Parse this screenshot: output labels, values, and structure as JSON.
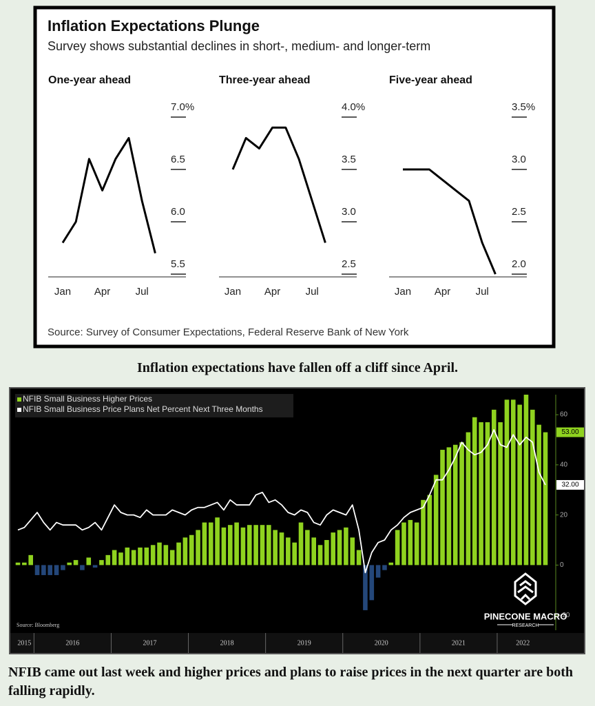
{
  "figure": {
    "title": "Inflation Expectations Plunge",
    "subtitle": "Survey shows substantial declines in short-, medium- and longer-term",
    "source": "Source: Survey of Consumer Expectations, Federal Reserve Bank of New York"
  },
  "captions": [
    "Inflation expectations have fallen off a cliff since April.",
    "NFIB came out last week and higher prices and plans to raise prices in the next quarter are both falling rapidly."
  ],
  "chart_data": [
    {
      "type": "line",
      "title": "One-year ahead",
      "categories": [
        "Jan",
        null,
        null,
        "Apr",
        null,
        null,
        "Jul",
        null
      ],
      "values": [
        5.8,
        6.0,
        6.6,
        6.3,
        6.6,
        6.8,
        6.2,
        5.7
      ],
      "color": "#000000",
      "ylim": [
        5.5,
        7.0
      ],
      "yticks": [
        {
          "value": 7.0,
          "label": "7.0%"
        },
        6.5,
        {
          "value": 6.0,
          "label": "6.0"
        },
        5.5
      ]
    },
    {
      "type": "line",
      "title": "Three-year ahead",
      "categories": [
        "Jan",
        null,
        null,
        "Apr",
        null,
        null,
        "Jul",
        null
      ],
      "values": [
        3.5,
        3.8,
        3.7,
        3.9,
        3.9,
        3.6,
        3.2,
        2.8
      ],
      "color": "#000000",
      "ylim": [
        2.5,
        4.0
      ],
      "yticks": [
        {
          "value": 4.0,
          "label": "4.0%"
        },
        3.5,
        {
          "value": 3.0,
          "label": "3.0"
        },
        2.5
      ]
    },
    {
      "type": "line",
      "title": "Five-year ahead",
      "categories": [
        "Jan",
        null,
        null,
        "Apr",
        null,
        null,
        "Jul",
        null
      ],
      "values": [
        3.0,
        3.0,
        3.0,
        2.9,
        2.8,
        2.7,
        2.3,
        2.0
      ],
      "color": "#000000",
      "ylim": [
        2.0,
        3.5
      ],
      "yticks": [
        {
          "value": 3.5,
          "label": "3.5%"
        },
        {
          "value": 3.0,
          "label": "3.0"
        },
        2.5,
        {
          "value": 2.0,
          "label": "2.0"
        }
      ]
    },
    {
      "type": "bar",
      "source": "Source: Bloomberg",
      "logo": [
        "PINECONE MACRO",
        "RESEARCH"
      ],
      "categories": [
        "2015",
        "2015",
        "2015",
        "2016",
        "2016",
        "2016",
        "2016",
        "2016",
        "2016",
        "2016",
        "2016",
        "2016",
        "2016",
        "2016",
        "2016",
        "2017",
        "2017",
        "2017",
        "2017",
        "2017",
        "2017",
        "2017",
        "2017",
        "2017",
        "2017",
        "2017",
        "2017",
        "2018",
        "2018",
        "2018",
        "2018",
        "2018",
        "2018",
        "2018",
        "2018",
        "2018",
        "2018",
        "2018",
        "2018",
        "2019",
        "2019",
        "2019",
        "2019",
        "2019",
        "2019",
        "2019",
        "2019",
        "2019",
        "2019",
        "2019",
        "2019",
        "2020",
        "2020",
        "2020",
        "2020",
        "2020",
        "2020",
        "2020",
        "2020",
        "2020",
        "2020",
        "2020",
        "2020",
        "2021",
        "2021",
        "2021",
        "2021",
        "2021",
        "2021",
        "2021",
        "2021",
        "2021",
        "2021",
        "2021",
        "2021",
        "2022",
        "2022",
        "2022",
        "2022",
        "2022",
        "2022",
        "2022",
        "2022"
      ],
      "ylim": [
        -26,
        68
      ],
      "yticks": [
        -20,
        0,
        20,
        40,
        60
      ],
      "series": [
        {
          "name": "NFIB Small Business Higher Prices",
          "type": "bar",
          "color": "#8fd21f",
          "negative_color": "#24477a",
          "values": [
            1,
            1,
            4,
            -4,
            -4,
            -4,
            -4,
            -2,
            1,
            2,
            -2,
            3,
            -1,
            2,
            4,
            6,
            5,
            7,
            6,
            7,
            7,
            8,
            9,
            8,
            6,
            9,
            11,
            12,
            14,
            17,
            17,
            19,
            15,
            16,
            17,
            15,
            16,
            16,
            16,
            16,
            14,
            13,
            11,
            9,
            17,
            14,
            11,
            8,
            10,
            13,
            14,
            15,
            11,
            6,
            -18,
            -14,
            -5,
            -2,
            1,
            14,
            17,
            18,
            17,
            26,
            28,
            36,
            46,
            47,
            48,
            49,
            53,
            59,
            57,
            57,
            62,
            57,
            66,
            66,
            64,
            68,
            62,
            56,
            53
          ],
          "value_labels": [
            null,
            null,
            null,
            null,
            null,
            null,
            null,
            null,
            null,
            null,
            null,
            null,
            null,
            null,
            null,
            null,
            null,
            null,
            null,
            null,
            null,
            null,
            null,
            null,
            null,
            null,
            null,
            null,
            null,
            null,
            null,
            null,
            null,
            null,
            null,
            null,
            null,
            null,
            null,
            null,
            null,
            null,
            null,
            null,
            null,
            null,
            null,
            null,
            null,
            null,
            null,
            null,
            null,
            null,
            null,
            null,
            null,
            null,
            null,
            null,
            null,
            null,
            null,
            null,
            null,
            null,
            null,
            null,
            null,
            null,
            null,
            null,
            null,
            null,
            null,
            null,
            null,
            null,
            null,
            null,
            null,
            null,
            "53.00"
          ]
        },
        {
          "name": "NFIB Small Business Price Plans Net Percent Next Three Months",
          "type": "line",
          "color": "#ffffff",
          "values": [
            14,
            15,
            18,
            21,
            17,
            14,
            17,
            16,
            16,
            16,
            14,
            15,
            17,
            14,
            19,
            24,
            21,
            20,
            20,
            19,
            22,
            20,
            20,
            20,
            22,
            21,
            20,
            22,
            23,
            23,
            24,
            25,
            22,
            26,
            24,
            24,
            24,
            28,
            29,
            25,
            26,
            24,
            21,
            20,
            22,
            21,
            17,
            16,
            20,
            22,
            21,
            20,
            24,
            14,
            -3,
            5,
            9,
            10,
            14,
            16,
            19,
            21,
            22,
            23,
            28,
            34,
            34,
            38,
            43,
            49,
            46,
            44,
            45,
            48,
            54,
            48,
            47,
            52,
            48,
            51,
            49,
            37,
            32
          ],
          "value_labels": [
            null,
            null,
            null,
            null,
            null,
            null,
            null,
            null,
            null,
            null,
            null,
            null,
            null,
            null,
            null,
            null,
            null,
            null,
            null,
            null,
            null,
            null,
            null,
            null,
            null,
            null,
            null,
            null,
            null,
            null,
            null,
            null,
            null,
            null,
            null,
            null,
            null,
            null,
            null,
            null,
            null,
            null,
            null,
            null,
            null,
            null,
            null,
            null,
            null,
            null,
            null,
            null,
            null,
            null,
            null,
            null,
            null,
            null,
            null,
            null,
            null,
            null,
            null,
            null,
            null,
            null,
            null,
            null,
            null,
            null,
            null,
            null,
            null,
            null,
            null,
            null,
            null,
            null,
            null,
            null,
            null,
            null,
            "32.00"
          ]
        }
      ]
    }
  ]
}
